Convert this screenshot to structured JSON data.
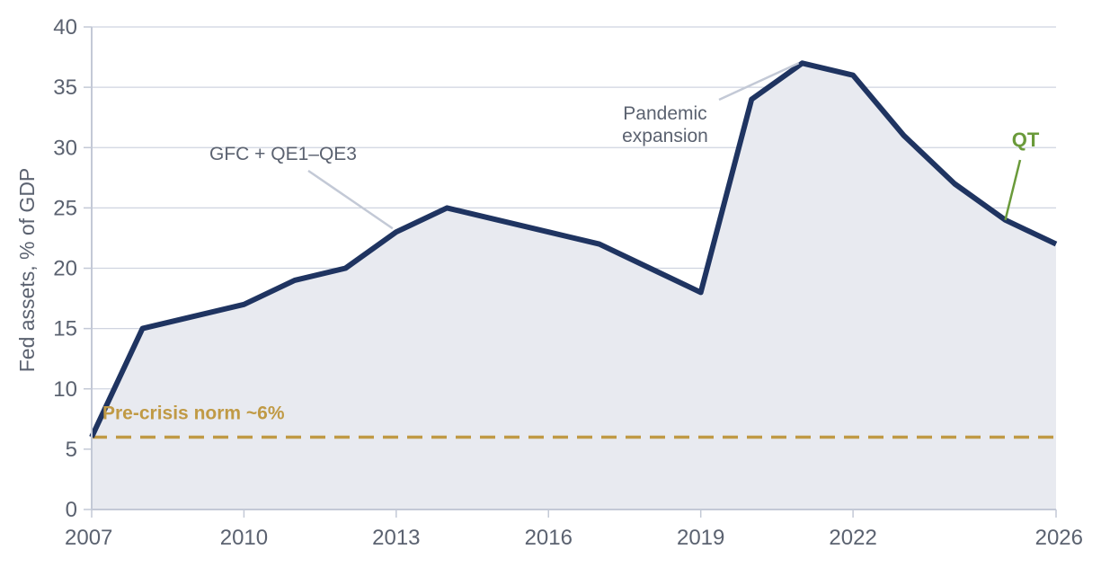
{
  "colors": {
    "line": "#1f3461",
    "area": "#e8eaf0",
    "grid": "#cfd4e0",
    "axis": "#c3c9d6",
    "text": "#5b6270",
    "reference": "#c09a45",
    "qt": "#6a9a3a",
    "leader": "#c3c9d6"
  },
  "chart_data": {
    "type": "area",
    "title": "",
    "xlabel": "",
    "ylabel": "Fed assets, % of GDP",
    "xlim": [
      2007,
      2026
    ],
    "ylim": [
      0,
      40
    ],
    "xticks": [
      "2007",
      "2010",
      "2013",
      "2016",
      "2019",
      "2022",
      "2026"
    ],
    "yticks": [
      "0",
      "5",
      "10",
      "15",
      "20",
      "25",
      "30",
      "35",
      "40"
    ],
    "grid": true,
    "legend": "none",
    "series": [
      {
        "x": [
          2007,
          2008,
          2009,
          2010,
          2011,
          2012,
          2013,
          2014,
          2015,
          2016,
          2017,
          2018,
          2019,
          2020,
          2021,
          2022,
          2023,
          2024,
          2025,
          2026
        ],
        "y": [
          6,
          15,
          16,
          17,
          19,
          20,
          23,
          25,
          24,
          23,
          22,
          20,
          18,
          34,
          37,
          36,
          31,
          27,
          24,
          22
        ]
      }
    ],
    "reference_line": {
      "y": 6,
      "label": "Pre-crisis norm ~6%"
    },
    "annotations": [
      {
        "text": [
          "GFC + QE1–QE3"
        ],
        "target": [
          2013,
          23
        ]
      },
      {
        "text": [
          "Pandemic",
          "expansion"
        ],
        "target": [
          2021,
          37
        ]
      },
      {
        "text": [
          "QT"
        ],
        "target": [
          2025,
          24
        ]
      }
    ]
  }
}
